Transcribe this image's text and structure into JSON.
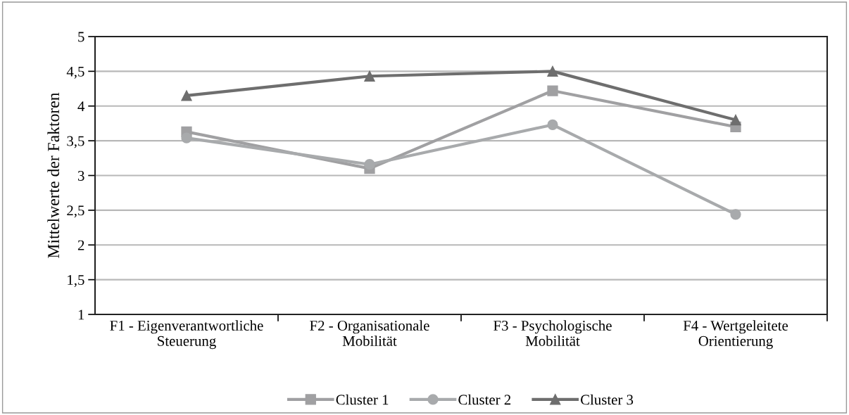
{
  "chart_data": {
    "type": "line",
    "ylabel": "Mittelwerte der Faktoren",
    "categories": [
      "F1 - Eigenverantwortliche\nSteuerung",
      "F2 - Organisationale\nMobilität",
      "F3 - Psychologische\nMobilität",
      "F4 - Wertgeleitete\nOrientierung"
    ],
    "series": [
      {
        "name": "Cluster 1",
        "color": "#a0a0a2",
        "marker": "square",
        "values": [
          3.63,
          3.1,
          4.22,
          3.7
        ]
      },
      {
        "name": "Cluster 2",
        "color": "#a8aaac",
        "marker": "circle",
        "values": [
          3.54,
          3.16,
          3.73,
          2.44
        ]
      },
      {
        "name": "Cluster 3",
        "color": "#6e6e6e",
        "marker": "triangle",
        "values": [
          4.15,
          4.43,
          4.5,
          3.8
        ]
      }
    ],
    "ylim": [
      1,
      5
    ],
    "yticks": [
      1,
      {
        "value": 1.5,
        "label": "1,5"
      },
      2,
      {
        "value": 2.5,
        "label": "2,5"
      },
      3,
      {
        "value": 3.5,
        "label": "3,5"
      },
      4,
      {
        "value": 4.5,
        "label": "4,5"
      },
      5
    ],
    "grid": "y",
    "legend": "bottom"
  }
}
